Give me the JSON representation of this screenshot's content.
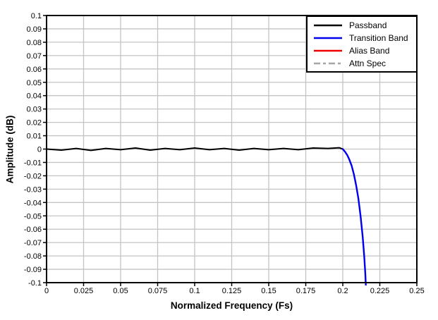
{
  "chart": {
    "x_axis": {
      "title": "Normalized Frequency (Fs)",
      "ticks": [
        0,
        0.025,
        0.05,
        0.075,
        0.1,
        0.125,
        0.15,
        0.175,
        0.2,
        0.225,
        0.25
      ]
    },
    "y_axis": {
      "title": "Amplitude (dB)",
      "ticks": [
        0.1,
        0.09,
        0.08,
        0.07,
        0.06,
        0.05,
        0.04,
        0.03,
        0.02,
        0.01,
        0,
        -0.01,
        -0.02,
        -0.03,
        -0.04,
        -0.05,
        -0.06,
        -0.07,
        -0.08,
        -0.09,
        -0.1
      ]
    },
    "colors": {
      "grid": "#c4c4c4",
      "axis_frame": "#000000",
      "background": "#ffffff",
      "passband": "#000000",
      "transition_band": "#0000ee",
      "alias_band": "#ee0000",
      "attn_spec": "#a6a6a6"
    }
  },
  "chart_data": {
    "type": "line",
    "title": "",
    "xlabel": "Normalized Frequency (Fs)",
    "ylabel": "Amplitude (dB)",
    "xlim": [
      0,
      0.25
    ],
    "ylim": [
      -0.1,
      0.1
    ],
    "grid": true,
    "legend_position": "top-right-inside",
    "series": [
      {
        "name": "Passband",
        "color": "#000000",
        "dash": null,
        "width": 2,
        "points": [
          [
            0,
            0
          ],
          [
            0.01,
            -0.0008
          ],
          [
            0.02,
            0.0005
          ],
          [
            0.03,
            -0.001
          ],
          [
            0.04,
            0.0005
          ],
          [
            0.05,
            -0.0005
          ],
          [
            0.06,
            0.0008
          ],
          [
            0.07,
            -0.0008
          ],
          [
            0.08,
            0.0005
          ],
          [
            0.09,
            -0.0005
          ],
          [
            0.1,
            0.0008
          ],
          [
            0.11,
            -0.0005
          ],
          [
            0.12,
            0.0005
          ],
          [
            0.13,
            -0.0008
          ],
          [
            0.14,
            0.0005
          ],
          [
            0.15,
            -0.0005
          ],
          [
            0.16,
            0.0005
          ],
          [
            0.17,
            -0.0005
          ],
          [
            0.18,
            0.0008
          ],
          [
            0.19,
            0.0005
          ],
          [
            0.1975,
            0.001
          ],
          [
            0.2,
            0
          ]
        ]
      },
      {
        "name": "Transition Band",
        "color": "#0000ee",
        "dash": null,
        "width": 2.4,
        "points": [
          [
            0.2,
            0
          ],
          [
            0.2015,
            -0.002
          ],
          [
            0.203,
            -0.0045
          ],
          [
            0.2043,
            -0.0075
          ],
          [
            0.206,
            -0.0125
          ],
          [
            0.2075,
            -0.019
          ],
          [
            0.209,
            -0.027
          ],
          [
            0.2105,
            -0.037
          ],
          [
            0.212,
            -0.05
          ],
          [
            0.2135,
            -0.066
          ],
          [
            0.2145,
            -0.081
          ],
          [
            0.2152,
            -0.093
          ],
          [
            0.2158,
            -0.108
          ]
        ]
      },
      {
        "name": "Alias Band",
        "color": "#ee0000",
        "dash": null,
        "width": 2,
        "visible_in_range": false,
        "points": []
      },
      {
        "name": "Attn Spec",
        "color": "#a6a6a6",
        "dash": "9 4 4 4",
        "width": 2,
        "visible_in_range": false,
        "points": []
      }
    ]
  }
}
